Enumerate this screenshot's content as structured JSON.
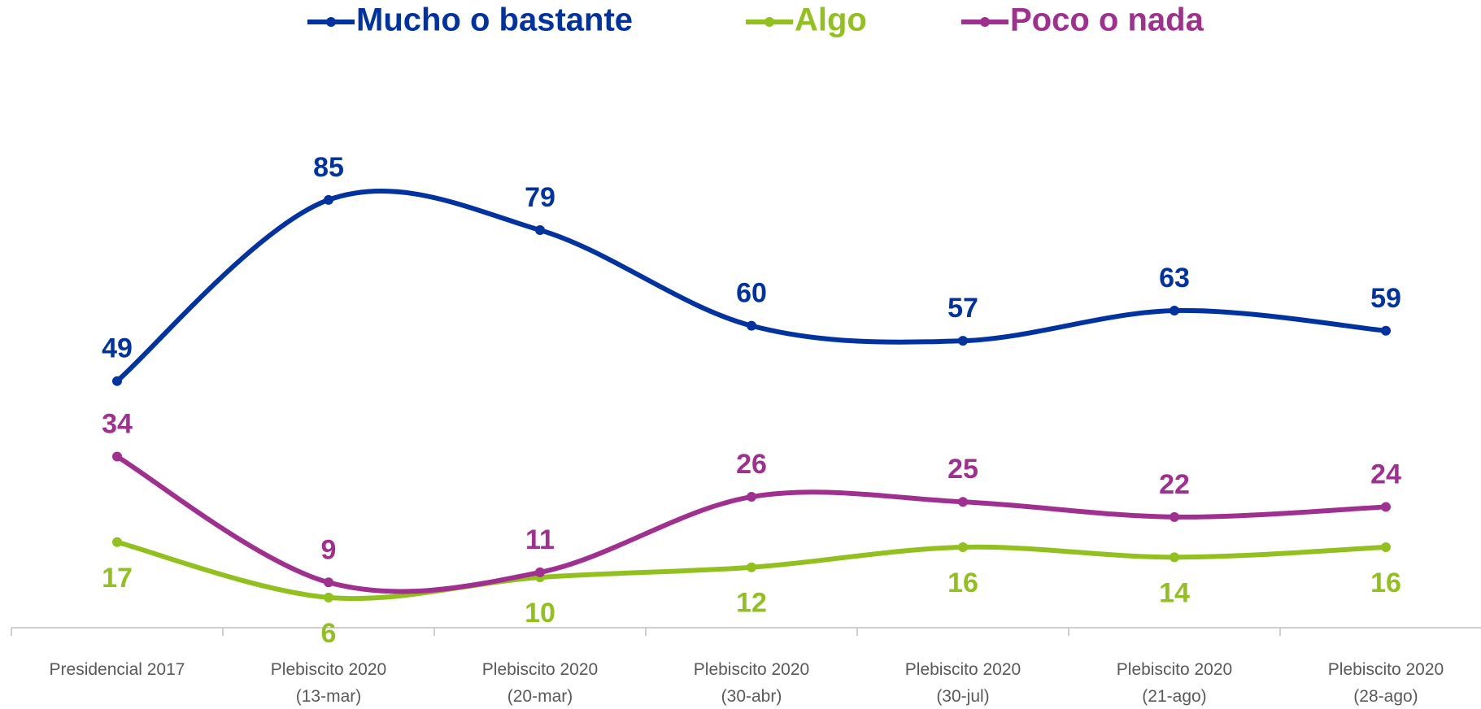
{
  "chart_data": {
    "type": "line",
    "categories": [
      [
        "Presidencial 2017"
      ],
      [
        "Plebiscito 2020",
        "(13-mar)"
      ],
      [
        "Plebiscito 2020",
        "(20-mar)"
      ],
      [
        "Plebiscito 2020",
        "(30-abr)"
      ],
      [
        "Plebiscito 2020",
        "(30-jul)"
      ],
      [
        "Plebiscito 2020",
        "(21-ago)"
      ],
      [
        "Plebiscito 2020",
        "(28-ago)"
      ]
    ],
    "series": [
      {
        "name": "Mucho o bastante",
        "color": "#0033a0",
        "values": [
          49,
          85,
          79,
          60,
          57,
          63,
          59
        ],
        "label_position": "above"
      },
      {
        "name": "Algo",
        "color": "#92c01f",
        "values": [
          17,
          6,
          10,
          12,
          16,
          14,
          16
        ],
        "label_position": "below"
      },
      {
        "name": "Poco o nada",
        "color": "#a0308f",
        "values": [
          34,
          9,
          11,
          26,
          25,
          22,
          24
        ],
        "label_position": "above"
      }
    ],
    "ylim": [
      0,
      100
    ],
    "smooth": true
  }
}
